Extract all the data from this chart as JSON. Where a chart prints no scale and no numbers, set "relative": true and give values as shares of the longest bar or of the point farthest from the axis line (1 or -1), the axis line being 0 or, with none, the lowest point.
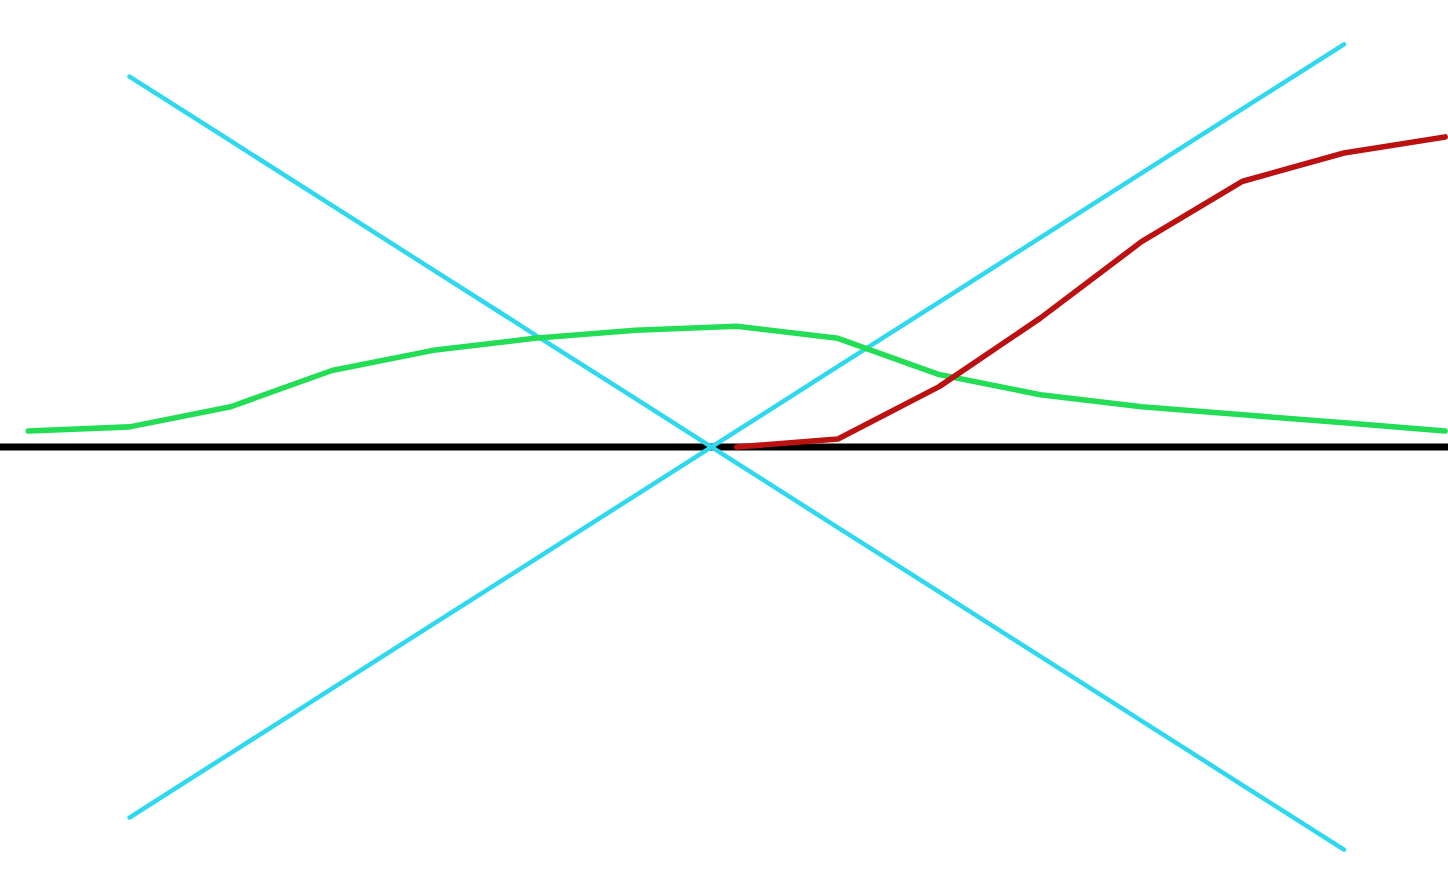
{
  "chart_data": {
    "type": "line",
    "relative": true,
    "line_style": "solid",
    "marker": "none",
    "categories": [
      null,
      null,
      null,
      null,
      null,
      null,
      null,
      null,
      null,
      null,
      null,
      null,
      null,
      null,
      null
    ],
    "series": [
      {
        "color": "#2fd8ee",
        "values": [
          null,
          0.92,
          0.76,
          0.6,
          0.44,
          0.28,
          0.12,
          -0.04,
          -0.2,
          -0.36,
          -0.52,
          -0.68,
          -0.84,
          -1.0,
          null
        ]
      },
      {
        "color": "#2fd8ee",
        "values": [
          null,
          -0.92,
          -0.76,
          -0.6,
          -0.44,
          -0.28,
          -0.12,
          0.04,
          0.2,
          0.36,
          0.52,
          0.68,
          0.84,
          1.0,
          null
        ]
      },
      {
        "color": "#22dd55",
        "values": [
          0.04,
          0.05,
          0.1,
          0.19,
          0.24,
          0.27,
          0.29,
          0.3,
          0.27,
          0.18,
          0.13,
          0.1,
          0.08,
          0.06,
          0.04
        ]
      },
      {
        "color": "#bb1111",
        "values": [
          null,
          null,
          null,
          null,
          null,
          null,
          null,
          0.0,
          0.02,
          0.15,
          0.32,
          0.51,
          0.66,
          0.73,
          0.77
        ]
      }
    ]
  }
}
